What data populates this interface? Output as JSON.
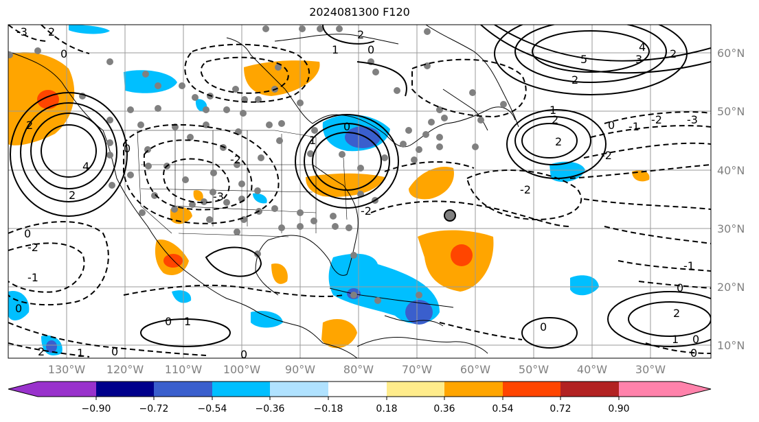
{
  "title": "2024081300 F120",
  "longitude_labels": [
    "130°W",
    "120°W",
    "110°W",
    "100°W",
    "90°W",
    "80°W",
    "70°W",
    "60°W",
    "50°W",
    "40°W",
    "30°W"
  ],
  "latitude_labels": [
    "60°N",
    "50°N",
    "40°N",
    "30°N",
    "20°N",
    "10°N"
  ],
  "contour_labels": [
    "-3",
    "-2",
    "-1",
    "0",
    "1",
    "2",
    "3",
    "4",
    "5"
  ],
  "colorbar": {
    "ticks": [
      "−0.90",
      "−0.72",
      "−0.54",
      "−0.36",
      "−0.18",
      "0.18",
      "0.36",
      "0.54",
      "0.72",
      "0.90"
    ],
    "colors": [
      "#9932CC",
      "#00008B",
      "#3A5FCD",
      "#00BFFF",
      "#B0E2FF",
      "#FFFFFF",
      "#FFEC8B",
      "#FFA500",
      "#FF4500",
      "#B22222",
      "#FF82AB"
    ]
  }
}
